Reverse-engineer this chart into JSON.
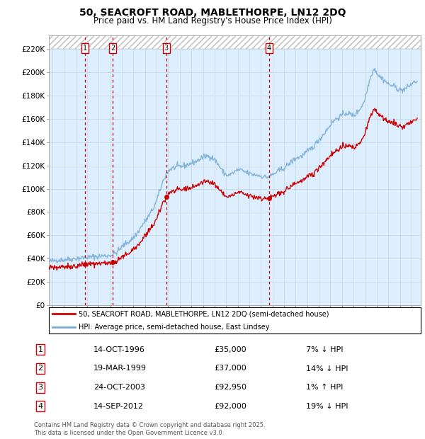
{
  "title": "50, SEACROFT ROAD, MABLETHORPE, LN12 2DQ",
  "subtitle": "Price paid vs. HM Land Registry's House Price Index (HPI)",
  "yticks": [
    0,
    20000,
    40000,
    60000,
    80000,
    100000,
    120000,
    140000,
    160000,
    180000,
    200000,
    220000
  ],
  "ytick_labels": [
    "£0",
    "£20K",
    "£40K",
    "£60K",
    "£80K",
    "£100K",
    "£120K",
    "£140K",
    "£160K",
    "£180K",
    "£200K",
    "£220K"
  ],
  "ylim": [
    0,
    232000
  ],
  "xlim_start": 1993.7,
  "xlim_end": 2025.8,
  "sale_dates": [
    1996.79,
    1999.22,
    2003.82,
    2012.71
  ],
  "sale_prices": [
    35000,
    37000,
    92950,
    92000
  ],
  "sale_labels": [
    "1",
    "2",
    "3",
    "4"
  ],
  "legend_line1": "50, SEACROFT ROAD, MABLETHORPE, LN12 2DQ (semi-detached house)",
  "legend_line2": "HPI: Average price, semi-detached house, East Lindsey",
  "table_data": [
    [
      "1",
      "14-OCT-1996",
      "£35,000",
      "7% ↓ HPI"
    ],
    [
      "2",
      "19-MAR-1999",
      "£37,000",
      "14% ↓ HPI"
    ],
    [
      "3",
      "24-OCT-2003",
      "£92,950",
      "1% ↑ HPI"
    ],
    [
      "4",
      "14-SEP-2012",
      "£92,000",
      "19% ↓ HPI"
    ]
  ],
  "footer": "Contains HM Land Registry data © Crown copyright and database right 2025.\nThis data is licensed under the Open Government Licence v3.0.",
  "red_color": "#cc0000",
  "blue_color": "#7aaed6",
  "grid_color": "#c8d8e8",
  "background_color": "#ddeeff"
}
